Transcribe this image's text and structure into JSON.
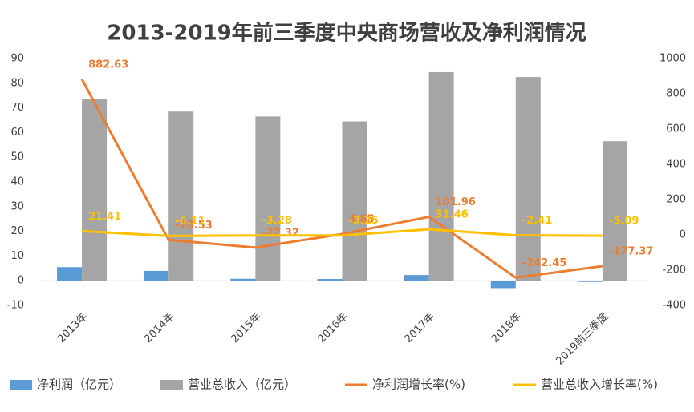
{
  "chart_data": {
    "type": "combo",
    "title": "2013-2019年前三季度中央商场营收及净利润情况",
    "categories": [
      "2013年",
      "2014年",
      "2015年",
      "2016年",
      "2017年",
      "2018年",
      "2019前三季度"
    ],
    "ylim": [
      -10,
      90
    ],
    "yticks": [
      -10,
      0,
      10,
      20,
      30,
      40,
      50,
      60,
      70,
      80,
      90
    ],
    "y2lim": [
      -400,
      1000
    ],
    "y2ticks": [
      -400,
      -200,
      0,
      200,
      400,
      600,
      800,
      1000
    ],
    "grid": false,
    "legend": "bottom",
    "series": [
      {
        "name": "净利润（亿元）",
        "type": "bar",
        "color": "#5b9bd5",
        "values": [
          5.5,
          4.0,
          0.8,
          0.7,
          2.3,
          -3.0,
          -0.5
        ]
      },
      {
        "name": "营业总收入（亿元）",
        "type": "bar",
        "color": "#a5a5a5",
        "values": [
          73.5,
          68.5,
          66.5,
          64.5,
          84.5,
          82.5,
          56.5
        ]
      },
      {
        "name": "净利润增长率(%)",
        "type": "line",
        "axis": "y2",
        "color": "#ed7d31",
        "values": [
          882.63,
          -28.53,
          -72.32,
          4.85,
          101.96,
          -242.45,
          -177.37
        ]
      },
      {
        "name": "营业总收入增长率(%)",
        "type": "line",
        "axis": "y2",
        "color": "#ffc000",
        "values": [
          21.41,
          -6.11,
          -3.28,
          -3.25,
          31.46,
          -2.41,
          -5.09
        ]
      }
    ]
  }
}
